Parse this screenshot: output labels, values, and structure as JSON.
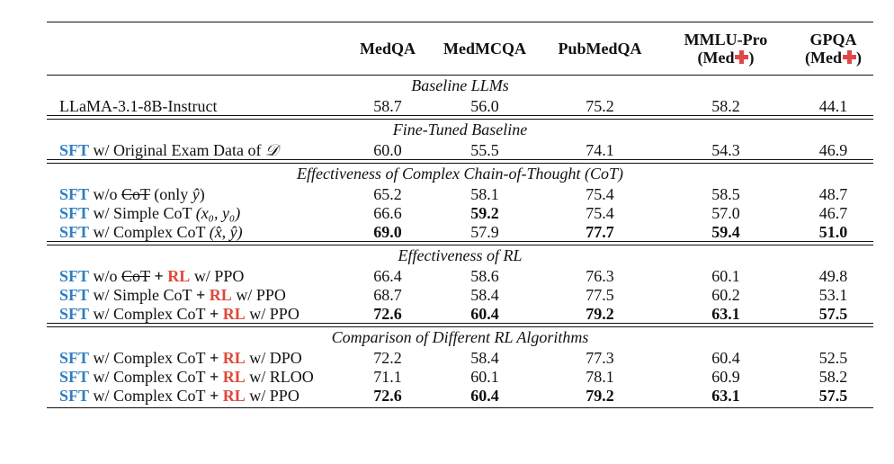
{
  "columns": [
    {
      "line1": "",
      "line2": ""
    },
    {
      "line1": "MedQA",
      "line2": ""
    },
    {
      "line1": "MedMCQA",
      "line2": ""
    },
    {
      "line1": "PubMedQA",
      "line2": ""
    },
    {
      "line1": "MMLU-Pro",
      "line2": "(Med",
      "icon": "red-cross-icon"
    },
    {
      "line1": "GPQA",
      "line2": "(Med",
      "icon": "red-cross-icon"
    }
  ],
  "close_paren": ")",
  "colors": {
    "sft": "#2f7ebf",
    "rl": "#e0483a",
    "cross": "#e04848"
  },
  "sections": [
    {
      "title": "Baseline LLMs",
      "rows": [
        {
          "label": {
            "pre": "",
            "text": "LLaMA-3.1-8B-Instruct"
          },
          "values": [
            "58.7",
            "56.0",
            "75.2",
            "58.2",
            "44.1"
          ],
          "bold": [
            false,
            false,
            false,
            false,
            false
          ]
        }
      ]
    },
    {
      "title": "Fine-Tuned Baseline",
      "rows": [
        {
          "label": {
            "pre": "SFT",
            "text": " w/ Original Exam Data of ",
            "math": "𝒟"
          },
          "values": [
            "60.0",
            "55.5",
            "74.1",
            "54.3",
            "46.9"
          ],
          "bold": [
            false,
            false,
            false,
            false,
            false
          ]
        }
      ]
    },
    {
      "title": "Effectiveness of Complex Chain-of-Thought (CoT)",
      "rows": [
        {
          "label": {
            "pre": "SFT",
            "text": " w/o ",
            "strike": "CoT",
            "after": " (only ",
            "math": "ŷ",
            "close": ")"
          },
          "values": [
            "65.2",
            "58.1",
            "75.4",
            "58.5",
            "48.7"
          ],
          "bold": [
            false,
            false,
            false,
            false,
            false
          ]
        },
        {
          "label": {
            "pre": "SFT",
            "text": " w/ Simple CoT ",
            "math": "(x₀, y₀)"
          },
          "values": [
            "66.6",
            "59.2",
            "75.4",
            "57.0",
            "46.7"
          ],
          "bold": [
            false,
            true,
            false,
            false,
            false
          ]
        },
        {
          "label": {
            "pre": "SFT",
            "text": " w/ Complex CoT ",
            "math": "(x̂, ŷ)"
          },
          "values": [
            "69.0",
            "57.9",
            "77.7",
            "59.4",
            "51.0"
          ],
          "bold": [
            true,
            false,
            true,
            true,
            true
          ]
        }
      ]
    },
    {
      "title": "Effectiveness of RL",
      "rows": [
        {
          "label": {
            "pre": "SFT",
            "text": " w/o ",
            "strike": "CoT",
            "plus": " + ",
            "rl": "RL",
            "suffix": " w/ PPO"
          },
          "values": [
            "66.4",
            "58.6",
            "76.3",
            "60.1",
            "49.8"
          ],
          "bold": [
            false,
            false,
            false,
            false,
            false
          ]
        },
        {
          "label": {
            "pre": "SFT",
            "text": " w/ Simple CoT",
            "plus": " + ",
            "rl": "RL",
            "suffix": " w/ PPO"
          },
          "values": [
            "68.7",
            "58.4",
            "77.5",
            "60.2",
            "53.1"
          ],
          "bold": [
            false,
            false,
            false,
            false,
            false
          ]
        },
        {
          "label": {
            "pre": "SFT",
            "text": " w/ Complex CoT",
            "plus": " + ",
            "rl": "RL",
            "suffix": " w/ PPO"
          },
          "values": [
            "72.6",
            "60.4",
            "79.2",
            "63.1",
            "57.5"
          ],
          "bold": [
            true,
            true,
            true,
            true,
            true
          ]
        }
      ]
    },
    {
      "title": "Comparison of Different RL Algorithms",
      "rows": [
        {
          "label": {
            "pre": "SFT",
            "text": " w/ Complex CoT",
            "plus": " + ",
            "rl": "RL",
            "suffix": " w/ DPO"
          },
          "values": [
            "72.2",
            "58.4",
            "77.3",
            "60.4",
            "52.5"
          ],
          "bold": [
            false,
            false,
            false,
            false,
            false
          ]
        },
        {
          "label": {
            "pre": "SFT",
            "text": " w/ Complex CoT",
            "plus": " + ",
            "rl": "RL",
            "suffix": " w/ RLOO"
          },
          "values": [
            "71.1",
            "60.1",
            "78.1",
            "60.9",
            "58.2"
          ],
          "bold": [
            false,
            false,
            false,
            false,
            false
          ]
        },
        {
          "label": {
            "pre": "SFT",
            "text": " w/ Complex CoT",
            "plus": " + ",
            "rl": "RL",
            "suffix": " w/ PPO"
          },
          "values": [
            "72.6",
            "60.4",
            "79.2",
            "63.1",
            "57.5"
          ],
          "bold": [
            true,
            true,
            true,
            true,
            true
          ]
        }
      ]
    }
  ]
}
